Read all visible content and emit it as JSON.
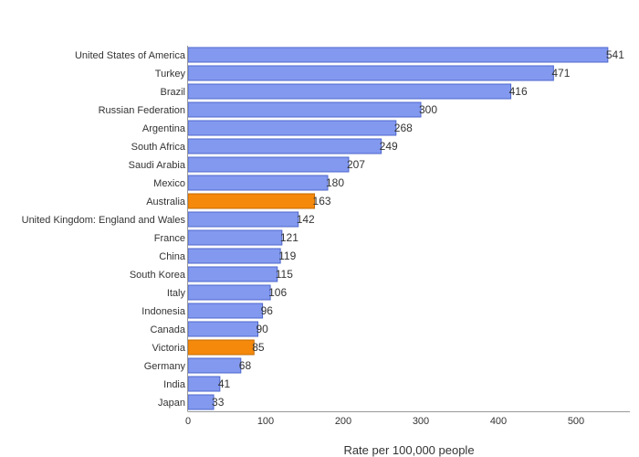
{
  "chart_data": {
    "type": "bar",
    "orientation": "horizontal",
    "title": "",
    "xlabel": "Rate per 100,000 people",
    "ylabel": "",
    "xlim": [
      0,
      570
    ],
    "xticks": [
      0,
      100,
      200,
      300,
      400,
      500
    ],
    "grid": false,
    "legend": "none",
    "categories": [
      "United States of America",
      "Turkey",
      "Brazil",
      "Russian Federation",
      "Argentina",
      "South Africa",
      "Saudi Arabia",
      "Mexico",
      "Australia",
      "United Kingdom: England and Wales",
      "France",
      "China",
      "South Korea",
      "Italy",
      "Indonesia",
      "Canada",
      "Victoria",
      "Germany",
      "India",
      "Japan"
    ],
    "values": [
      541,
      471,
      416,
      300,
      268,
      249,
      207,
      180,
      163,
      142,
      121,
      119,
      115,
      106,
      96,
      90,
      85,
      68,
      41,
      33
    ],
    "highlighted": [
      "Australia",
      "Victoria"
    ],
    "colors": {
      "bar": "#8399ef",
      "bar_border": "#4d66cc",
      "highlight": "#f5890c",
      "highlight_border": "#c46a00",
      "axis": "#999999",
      "text": "#333333"
    }
  }
}
